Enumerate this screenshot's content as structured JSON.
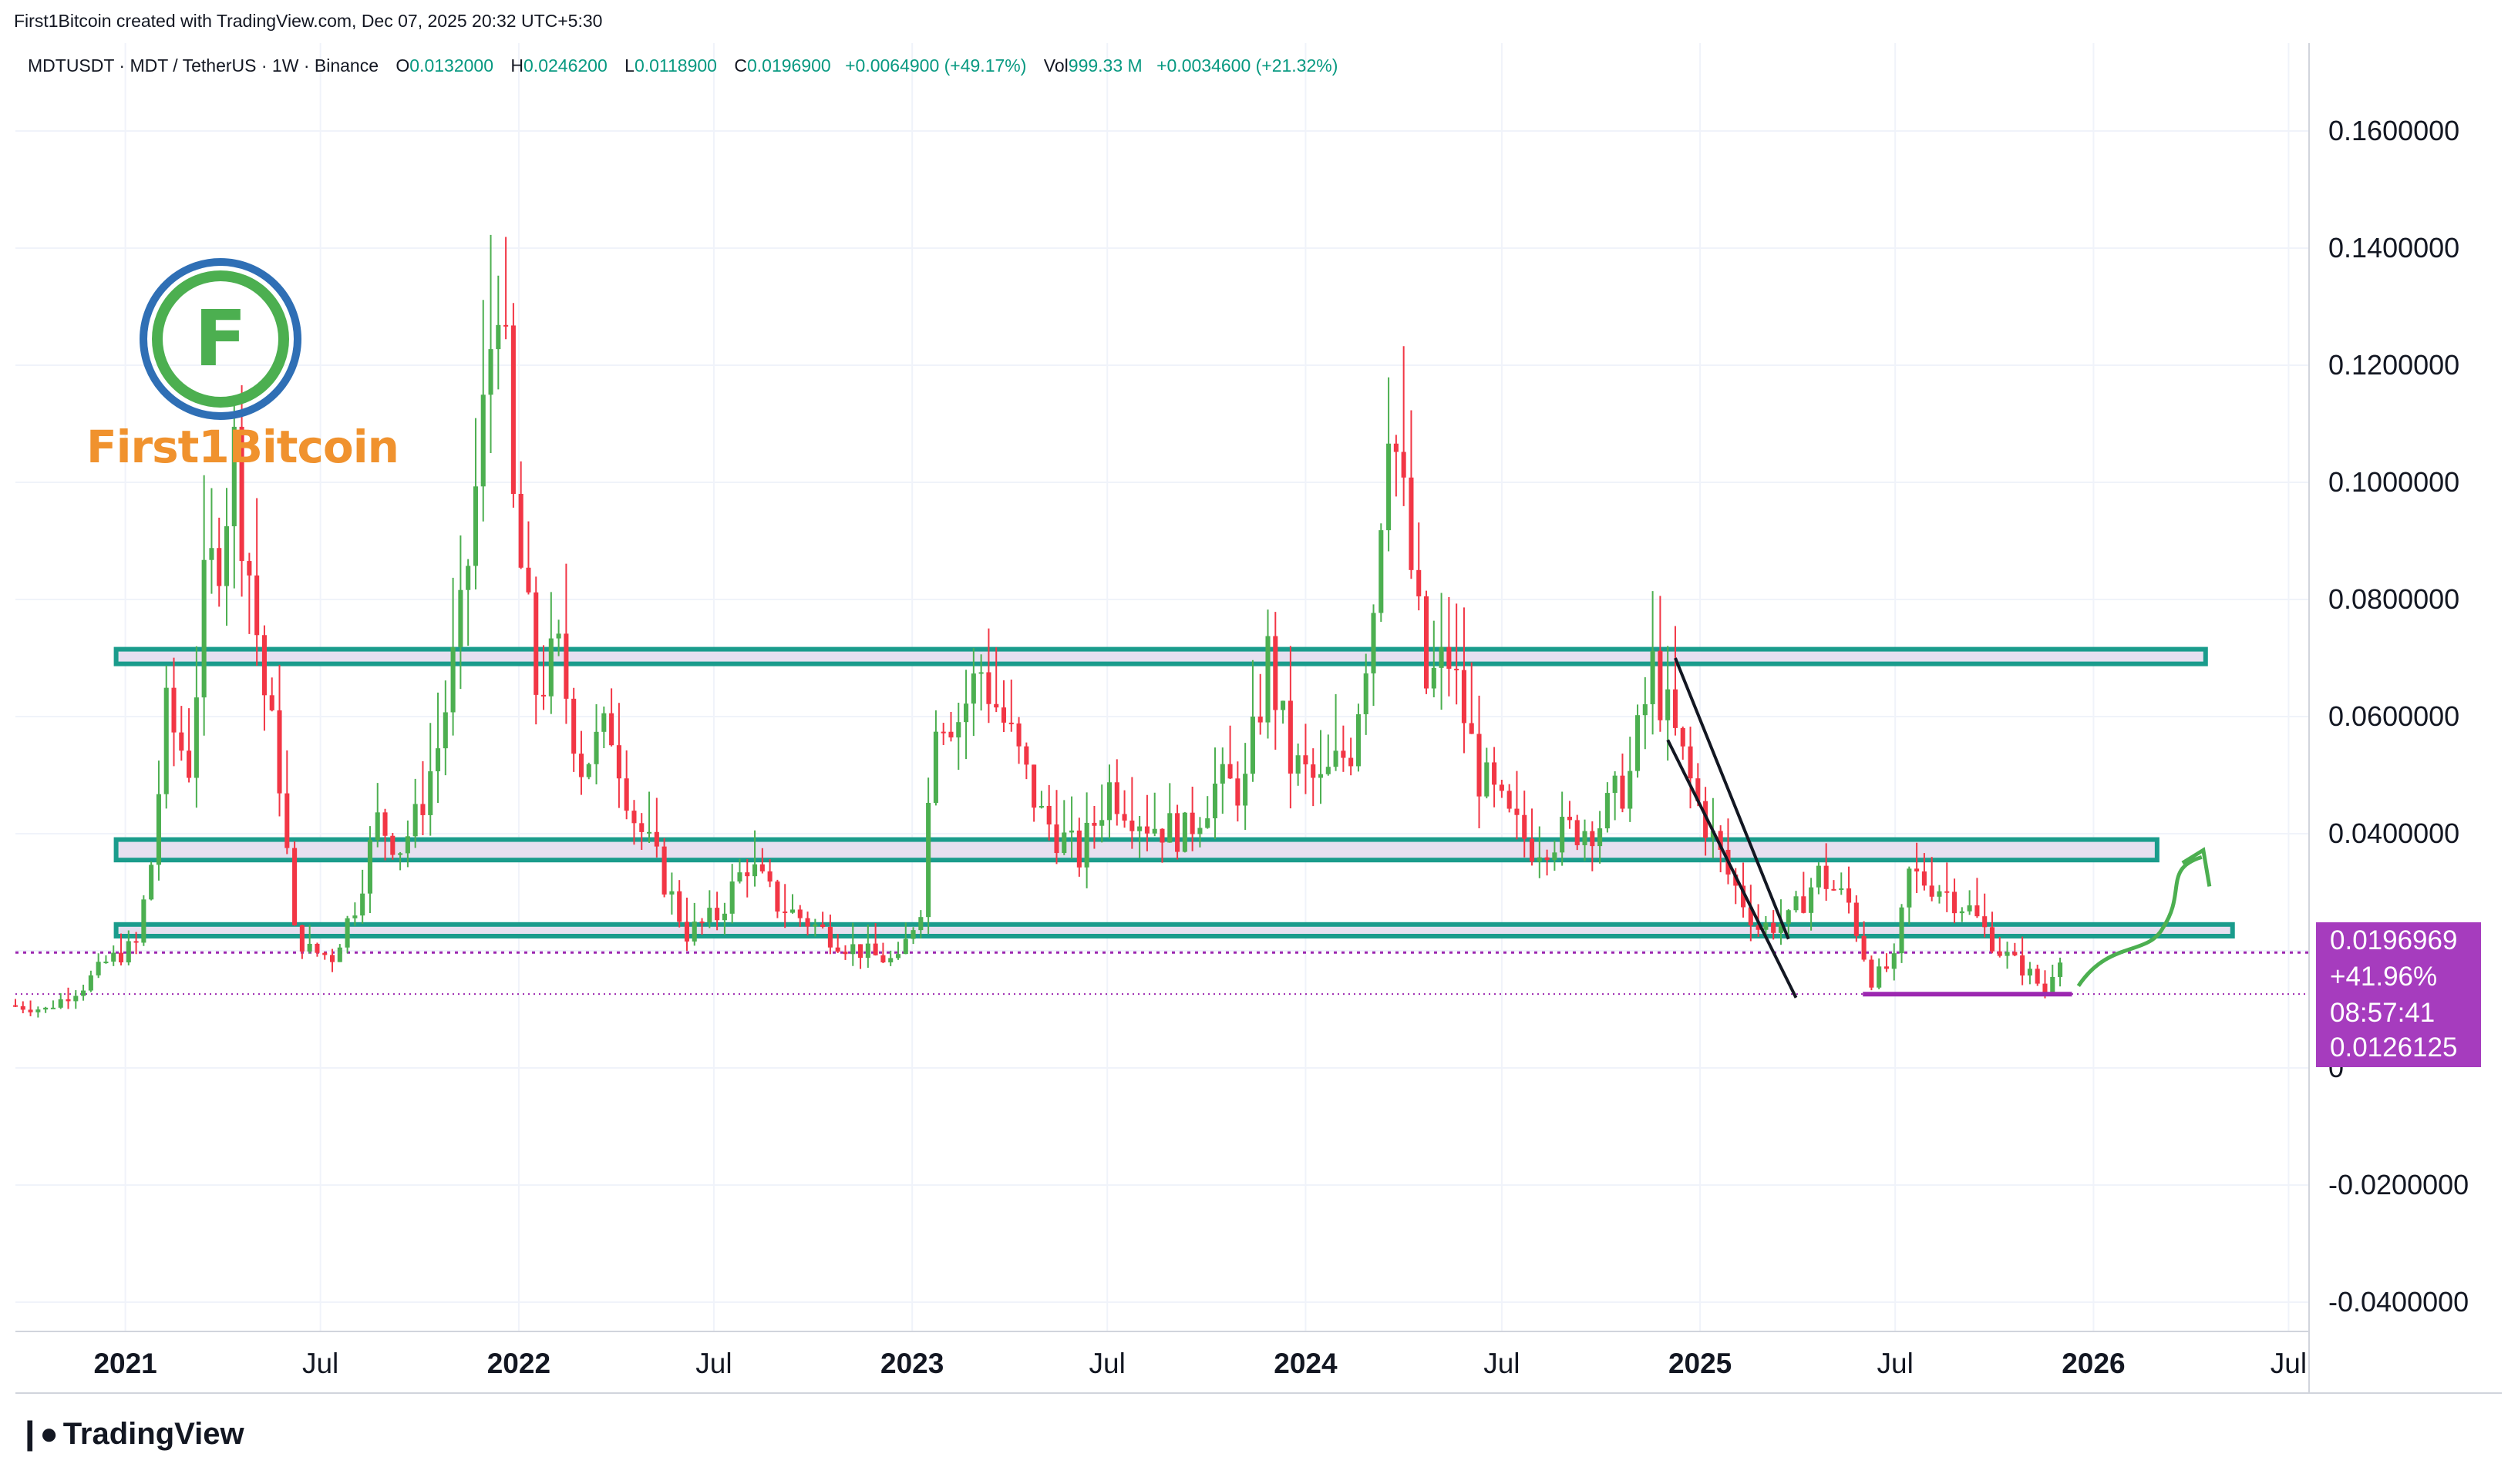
{
  "header": {
    "attribution": "First1Bitcoin created with TradingView.com, Dec 07, 2025 20:32 UTC+5:30"
  },
  "legend": {
    "symbol": "MDTUSDT · MDT / TetherUS · 1W · Binance",
    "open_label": "O",
    "open": "0.0132000",
    "high_label": "H",
    "high": "0.0246200",
    "low_label": "L",
    "low": "0.0118900",
    "close_label": "C",
    "close": "0.0196900",
    "change": "+0.0064900 (+49.17%)",
    "vol_label": "Vol",
    "vol": "999.33 M",
    "vol_change": "+0.0034600 (+21.32%)"
  },
  "watermark": {
    "brand": "First1Bitcoin"
  },
  "price_badge": {
    "price": "0.0196969",
    "pct": "+41.96%",
    "countdown": "08:57:41",
    "low": "0.0126125"
  },
  "footer": {
    "logo": "TradingView"
  },
  "colors": {
    "up": "#4caf50",
    "down": "#f23645",
    "zone_fill": "#e6e0f0",
    "zone_border": "#1a9c8c",
    "support": "#9c27b0",
    "arrow": "#4caf50",
    "badge": "#a63cbe"
  },
  "chart_data": {
    "type": "candlestick",
    "symbol": "MDTUSDT",
    "interval": "1W",
    "y_axis": {
      "min": -0.045,
      "max": 0.175,
      "ticks": [
        "0.1600000",
        "0.1400000",
        "0.1200000",
        "0.1000000",
        "0.0800000",
        "0.0600000",
        "0.0400000",
        "0.0200000",
        "0",
        "-0.0200000",
        "-0.0400000"
      ],
      "tick_values": [
        0.16,
        0.14,
        0.12,
        0.1,
        0.08,
        0.06,
        0.04,
        0.02,
        0,
        -0.02,
        -0.04
      ]
    },
    "x_axis": {
      "labels": [
        "2021",
        "Jul",
        "2022",
        "Jul",
        "2023",
        "Jul",
        "2024",
        "Jul",
        "2025",
        "Jul",
        "2026",
        "Jul"
      ],
      "bold": [
        true,
        false,
        true,
        false,
        true,
        false,
        true,
        false,
        true,
        false,
        true,
        false
      ],
      "label_dates": [
        "2021-01-01",
        "2021-07-01",
        "2022-01-01",
        "2022-07-01",
        "2023-01-01",
        "2023-07-01",
        "2024-01-01",
        "2024-07-01",
        "2025-01-01",
        "2025-07-01",
        "2026-01-01",
        "2026-07-01"
      ],
      "start": "2020-09-21",
      "end": "2026-07-20"
    },
    "price_path": [
      [
        "2020-09-21",
        0.0107
      ],
      [
        "2020-10-26",
        0.01
      ],
      [
        "2020-11-30",
        0.014
      ],
      [
        "2020-12-21",
        0.018
      ],
      [
        "2021-01-18",
        0.021
      ],
      [
        "2021-02-01",
        0.035
      ],
      [
        "2021-02-15",
        0.06
      ],
      [
        "2021-03-08",
        0.052
      ],
      [
        "2021-03-22",
        0.08
      ],
      [
        "2021-04-05",
        0.09
      ],
      [
        "2021-04-19",
        0.105
      ],
      [
        "2021-05-03",
        0.085
      ],
      [
        "2021-05-17",
        0.064
      ],
      [
        "2021-05-31",
        0.05
      ],
      [
        "2021-06-14",
        0.023
      ],
      [
        "2021-06-28",
        0.02
      ],
      [
        "2021-07-19",
        0.019
      ],
      [
        "2021-08-09",
        0.028
      ],
      [
        "2021-08-30",
        0.042
      ],
      [
        "2021-09-20",
        0.038
      ],
      [
        "2021-10-04",
        0.042
      ],
      [
        "2021-10-25",
        0.055
      ],
      [
        "2021-11-15",
        0.075
      ],
      [
        "2021-12-06",
        0.11
      ],
      [
        "2021-12-20",
        0.138
      ],
      [
        "2022-01-03",
        0.095
      ],
      [
        "2022-01-24",
        0.065
      ],
      [
        "2022-02-14",
        0.07
      ],
      [
        "2022-03-07",
        0.052
      ],
      [
        "2022-04-04",
        0.058
      ],
      [
        "2022-04-25",
        0.043
      ],
      [
        "2022-05-16",
        0.035
      ],
      [
        "2022-06-13",
        0.023
      ],
      [
        "2022-07-11",
        0.026
      ],
      [
        "2022-08-08",
        0.035
      ],
      [
        "2022-09-05",
        0.028
      ],
      [
        "2022-10-03",
        0.025
      ],
      [
        "2022-11-07",
        0.021
      ],
      [
        "2022-12-05",
        0.019
      ],
      [
        "2022-12-26",
        0.018
      ],
      [
        "2023-01-16",
        0.028
      ],
      [
        "2023-01-30",
        0.062
      ],
      [
        "2023-02-20",
        0.06
      ],
      [
        "2023-03-13",
        0.068
      ],
      [
        "2023-04-10",
        0.056
      ],
      [
        "2023-05-08",
        0.043
      ],
      [
        "2023-06-12",
        0.036
      ],
      [
        "2023-07-10",
        0.048
      ],
      [
        "2023-08-14",
        0.042
      ],
      [
        "2023-09-18",
        0.04
      ],
      [
        "2023-10-16",
        0.048
      ],
      [
        "2023-11-13",
        0.048
      ],
      [
        "2023-12-04",
        0.07
      ],
      [
        "2023-12-25",
        0.052
      ],
      [
        "2024-01-22",
        0.048
      ],
      [
        "2024-02-19",
        0.055
      ],
      [
        "2024-03-11",
        0.08
      ],
      [
        "2024-03-25",
        0.115
      ],
      [
        "2024-04-08",
        0.095
      ],
      [
        "2024-04-29",
        0.065
      ],
      [
        "2024-05-20",
        0.07
      ],
      [
        "2024-06-17",
        0.05
      ],
      [
        "2024-07-15",
        0.042
      ],
      [
        "2024-08-05",
        0.038
      ],
      [
        "2024-09-02",
        0.04
      ],
      [
        "2024-10-07",
        0.042
      ],
      [
        "2024-11-04",
        0.05
      ],
      [
        "2024-11-25",
        0.068
      ],
      [
        "2024-12-09",
        0.06
      ],
      [
        "2025-01-06",
        0.045
      ],
      [
        "2025-02-03",
        0.033
      ],
      [
        "2025-03-03",
        0.024
      ],
      [
        "2025-03-31",
        0.025
      ],
      [
        "2025-04-28",
        0.033
      ],
      [
        "2025-05-26",
        0.028
      ],
      [
        "2025-06-16",
        0.015
      ],
      [
        "2025-07-07",
        0.018
      ],
      [
        "2025-07-21",
        0.033
      ],
      [
        "2025-08-18",
        0.031
      ],
      [
        "2025-09-15",
        0.027
      ],
      [
        "2025-10-13",
        0.02
      ],
      [
        "2025-11-10",
        0.016
      ],
      [
        "2025-11-24",
        0.013
      ],
      [
        "2025-12-07",
        0.0197
      ]
    ],
    "zones": [
      {
        "from": "2021-01-01",
        "to": "2026-04-15",
        "low": 0.069,
        "high": 0.0715
      },
      {
        "from": "2021-01-01",
        "to": "2026-03-01",
        "low": 0.0355,
        "high": 0.039
      },
      {
        "from": "2021-01-01",
        "to": "2026-05-10",
        "low": 0.0225,
        "high": 0.0245
      }
    ],
    "support_line": {
      "from": "2025-06-01",
      "to": "2025-12-12",
      "value": 0.0126
    },
    "dotted_current": 0.0196969,
    "dotted_low": 0.0126125,
    "channel": {
      "line1": [
        [
          "2024-12-09",
          0.07
        ],
        [
          "2025-03-24",
          0.022
        ]
      ],
      "line2": [
        [
          "2024-12-02",
          0.056
        ],
        [
          "2025-03-31",
          0.012
        ]
      ]
    },
    "annotation": "arrow",
    "grid": true,
    "legend_position": "top-left"
  }
}
